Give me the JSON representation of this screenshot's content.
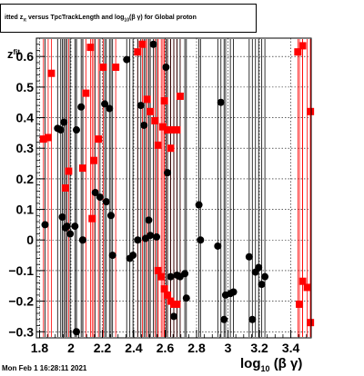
{
  "title": {
    "prefix": "itted  z",
    "sub1": "π",
    "middle": "  versus TpcTrackLength and log",
    "sub2": "10",
    "suffix": "(β γ) for Global proton"
  },
  "ylabel": {
    "main": "z",
    "sub": "fit"
  },
  "xlabel": {
    "main": "log",
    "sub": "10",
    "suffix": "(β γ)"
  },
  "footer": "Mon Feb  1 16:28:11 2021",
  "chart_data": {
    "type": "scatter",
    "xlim": [
      1.78,
      3.53
    ],
    "ylim": [
      -0.32,
      0.66
    ],
    "xticks": [
      1.8,
      2,
      2.2,
      2.4,
      2.6,
      2.8,
      3,
      3.2,
      3.4
    ],
    "xtick_labels": [
      "1.8",
      "2",
      "2.2",
      "2.4",
      "2.6",
      "2.8",
      "3",
      "3.2",
      "3.4"
    ],
    "yticks": [
      -0.3,
      -0.2,
      -0.1,
      0,
      0.1,
      0.2,
      0.3,
      0.4,
      0.5,
      0.6
    ],
    "ytick_labels": [
      "−0.3",
      "−0.2",
      "−0.1",
      "0",
      "0.1",
      "0.2",
      "0.3",
      "0.4",
      "0.5",
      "0.6"
    ],
    "grid": true,
    "series": [
      {
        "color": "#ff0000",
        "marker": "square",
        "points": [
          [
            1.825,
            0.33
          ],
          [
            1.855,
            0.335
          ],
          [
            1.875,
            0.545
          ],
          [
            1.965,
            0.17
          ],
          [
            1.985,
            0.225
          ],
          [
            2.075,
            0.235
          ],
          [
            2.095,
            0.48
          ],
          [
            2.125,
            0.63
          ],
          [
            2.145,
            0.26
          ],
          [
            2.175,
            0.33
          ],
          [
            2.205,
            0.565
          ],
          [
            2.285,
            0.565
          ],
          [
            2.425,
            0.615
          ],
          [
            2.455,
            0.64
          ],
          [
            2.485,
            0.46
          ],
          [
            2.505,
            0.42
          ],
          [
            2.535,
            0.39
          ],
          [
            2.555,
            0.31
          ],
          [
            2.585,
            0.37
          ],
          [
            2.595,
            0.455
          ],
          [
            2.615,
            0.36
          ],
          [
            2.635,
            0.3
          ],
          [
            2.655,
            0.36
          ],
          [
            2.675,
            0.36
          ],
          [
            2.695,
            0.47
          ],
          [
            3.445,
            0.615
          ],
          [
            3.475,
            0.635
          ],
          [
            3.525,
            0.42
          ],
          [
            2.135,
            0.07
          ],
          [
            2.555,
            -0.1
          ],
          [
            2.575,
            -0.12
          ],
          [
            2.595,
            -0.16
          ],
          [
            2.615,
            -0.18
          ],
          [
            2.635,
            -0.2
          ],
          [
            2.655,
            -0.21
          ],
          [
            2.675,
            -0.21
          ],
          [
            3.455,
            -0.21
          ],
          [
            3.475,
            -0.135
          ],
          [
            3.505,
            -0.155
          ],
          [
            3.525,
            -0.27
          ]
        ]
      },
      {
        "color": "#000000",
        "marker": "circle",
        "points": [
          [
            1.835,
            0.05
          ],
          [
            1.915,
            0.365
          ],
          [
            1.935,
            0.36
          ],
          [
            1.955,
            0.385
          ],
          [
            1.965,
            0.04
          ],
          [
            1.995,
            0.02
          ],
          [
            2.025,
            0.045
          ],
          [
            2.035,
            0.36
          ],
          [
            2.065,
            0.435
          ],
          [
            2.075,
            0.0
          ],
          [
            2.155,
            0.155
          ],
          [
            2.185,
            0.14
          ],
          [
            2.215,
            0.445
          ],
          [
            2.225,
            0.125
          ],
          [
            2.245,
            0.43
          ],
          [
            2.255,
            0.08
          ],
          [
            2.265,
            -0.05
          ],
          [
            2.355,
            0.59
          ],
          [
            2.375,
            -0.06
          ],
          [
            2.395,
            -0.05
          ],
          [
            2.425,
            0.0
          ],
          [
            2.445,
            0.44
          ],
          [
            2.465,
            0.375
          ],
          [
            2.475,
            0.005
          ],
          [
            2.495,
            0.065
          ],
          [
            2.505,
            0.015
          ],
          [
            2.525,
            0.64
          ],
          [
            2.545,
            0.01
          ],
          [
            2.605,
            0.565
          ],
          [
            2.615,
            0.22
          ],
          [
            2.635,
            -0.12
          ],
          [
            2.655,
            -0.25
          ],
          [
            2.675,
            -0.115
          ],
          [
            2.695,
            -0.12
          ],
          [
            2.725,
            -0.11
          ],
          [
            2.735,
            -0.19
          ],
          [
            2.815,
            0.115
          ],
          [
            2.825,
            0.0
          ],
          [
            2.935,
            -0.02
          ],
          [
            2.955,
            0.45
          ],
          [
            2.975,
            -0.26
          ],
          [
            2.985,
            -0.18
          ],
          [
            3.015,
            -0.175
          ],
          [
            3.035,
            -0.17
          ],
          [
            3.135,
            -0.055
          ],
          [
            3.155,
            -0.26
          ],
          [
            3.175,
            -0.105
          ],
          [
            3.195,
            -0.09
          ],
          [
            3.215,
            -0.145
          ],
          [
            3.235,
            -0.12
          ],
          [
            1.945,
            0.075
          ],
          [
            1.975,
            0.045
          ],
          [
            2.035,
            -0.3
          ],
          [
            2.075,
            0.0
          ]
        ]
      }
    ]
  }
}
